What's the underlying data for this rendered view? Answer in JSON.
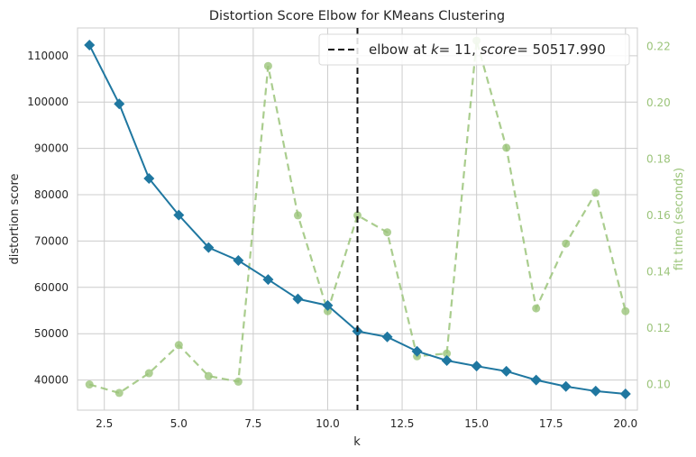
{
  "chart_data": {
    "type": "line",
    "title": "Distortion Score Elbow for KMeans Clustering",
    "xlabel": "k",
    "ylabel": "distortion score",
    "y2label": "fit time (seconds)",
    "xlim": [
      1.6,
      20.4
    ],
    "ylim": [
      33500,
      116000
    ],
    "y2lim": [
      0.0909,
      0.2265
    ],
    "xticks": [
      "2.5",
      "5.0",
      "7.5",
      "10.0",
      "12.5",
      "15.0",
      "17.5",
      "20.0"
    ],
    "yticks": [
      "40000",
      "50000",
      "60000",
      "70000",
      "80000",
      "90000",
      "100000",
      "110000"
    ],
    "y2ticks": [
      "0.10",
      "0.12",
      "0.14",
      "0.16",
      "0.18",
      "0.20",
      "0.22"
    ],
    "grid": true,
    "legend_position": "top-right",
    "legend": {
      "prefix": "elbow at ",
      "k_var": "k",
      "k_value": "= 11, ",
      "score_var": "score",
      "score_value": "= 50517.990"
    },
    "x": [
      2,
      3,
      4,
      5,
      6,
      7,
      8,
      9,
      10,
      11,
      12,
      13,
      14,
      15,
      16,
      17,
      18,
      19,
      20
    ],
    "series": [
      {
        "axis": "left",
        "color": "#1f77a0",
        "values": [
          112300,
          99600,
          83500,
          75600,
          68600,
          65800,
          61700,
          57500,
          56100,
          50518,
          49300,
          46200,
          44200,
          43000,
          41900,
          40000,
          38600,
          37600,
          37000
        ]
      },
      {
        "axis": "right",
        "color": "#9bc47a",
        "values": [
          0.1,
          0.097,
          0.104,
          0.114,
          0.103,
          0.101,
          0.213,
          0.16,
          0.126,
          0.16,
          0.154,
          0.11,
          0.111,
          0.222,
          0.184,
          0.127,
          0.15,
          0.168,
          0.126
        ]
      }
    ],
    "elbow_k": 11
  }
}
